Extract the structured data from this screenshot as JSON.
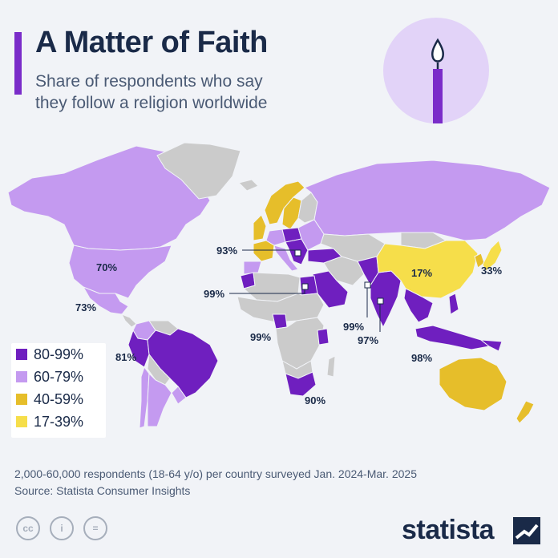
{
  "header": {
    "title": "A Matter of Faith",
    "subtitle_line1": "Share of respondents who say",
    "subtitle_line2": "they follow a religion worldwide"
  },
  "colors": {
    "bin_80_99": "#6f1fbf",
    "bin_60_79": "#c49af0",
    "bin_40_59": "#e6be2a",
    "bin_17_39": "#f6de4a",
    "no_data": "#cbcbcb",
    "ocean": "#f1f3f7",
    "accent": "#7a2cc9"
  },
  "legend": [
    {
      "label": "80-99%",
      "color": "#6f1fbf"
    },
    {
      "label": "60-79%",
      "color": "#c49af0"
    },
    {
      "label": "40-59%",
      "color": "#e6be2a"
    },
    {
      "label": "17-39%",
      "color": "#f6de4a"
    }
  ],
  "map_labels": {
    "usa": "70%",
    "mexico": "73%",
    "colombia": "81%",
    "italy": "93%",
    "morocco_egypt": "99%",
    "nigeria": "99%",
    "south_africa": "90%",
    "pakistan": "99%",
    "india": "97%",
    "china": "17%",
    "japan": "33%",
    "indonesia": "98%"
  },
  "footnote": {
    "line1": "2,000-60,000 respondents (18-64 y/o) per country surveyed Jan. 2024-Mar. 2025",
    "line2": "Source: Statista Consumer Insights"
  },
  "license": {
    "cc": "cc",
    "by": "i",
    "nd": "="
  },
  "brand": {
    "name": "statista"
  }
}
